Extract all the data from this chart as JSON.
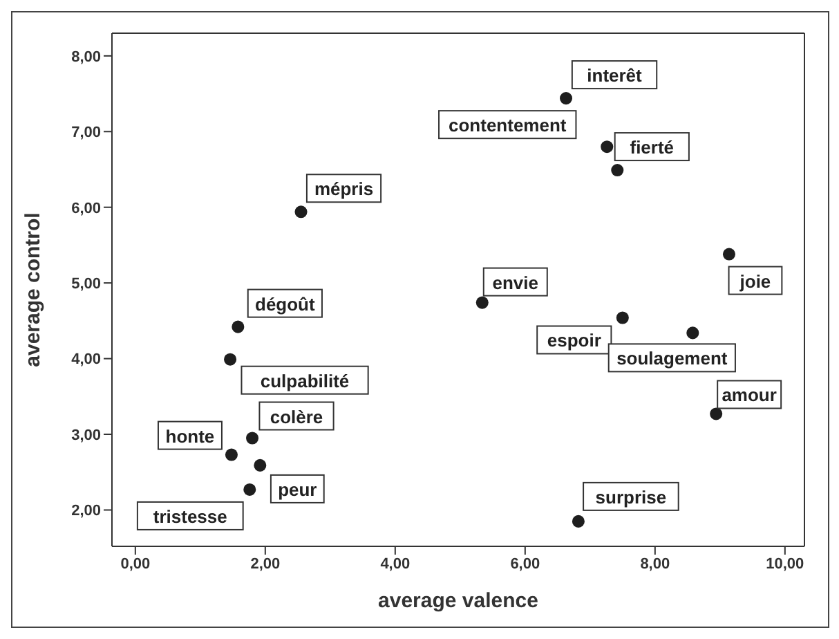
{
  "chart_data": {
    "type": "scatter",
    "xlabel": "average valence",
    "ylabel": "average control",
    "marker": "circle",
    "legend": false,
    "xlim": [
      -0.36,
      10.3
    ],
    "ylim": [
      1.52,
      8.3
    ],
    "xticks": [
      {
        "value": 0,
        "label": "0,00"
      },
      {
        "value": 2,
        "label": "2,00"
      },
      {
        "value": 4,
        "label": "4,00"
      },
      {
        "value": 6,
        "label": "6,00"
      },
      {
        "value": 8,
        "label": "8,00"
      },
      {
        "value": 10,
        "label": "10,00"
      }
    ],
    "yticks": [
      {
        "value": 2,
        "label": "2,00"
      },
      {
        "value": 3,
        "label": "3,00"
      },
      {
        "value": 4,
        "label": "4,00"
      },
      {
        "value": 5,
        "label": "5,00"
      },
      {
        "value": 6,
        "label": "6,00"
      },
      {
        "value": 7,
        "label": "7,00"
      },
      {
        "value": 8,
        "label": "8,00"
      }
    ],
    "series": [
      {
        "color": "#1e1e1e",
        "x": [
          6.63,
          7.26,
          7.42,
          2.55,
          9.14,
          5.34,
          1.58,
          7.5,
          8.58,
          1.46,
          8.94,
          1.8,
          1.48,
          1.92,
          1.76,
          6.82
        ],
        "values": [
          7.44,
          6.8,
          6.49,
          5.94,
          5.38,
          4.74,
          4.42,
          4.54,
          4.34,
          3.99,
          3.27,
          2.95,
          2.73,
          2.59,
          2.27,
          1.85
        ]
      }
    ],
    "annotations": [
      {
        "text": "interêt",
        "x": 6.63,
        "y": 7.44
      },
      {
        "text": "contentement",
        "x": 7.26,
        "y": 6.8
      },
      {
        "text": "fierté",
        "x": 7.42,
        "y": 6.49
      },
      {
        "text": "mépris",
        "x": 2.55,
        "y": 5.94
      },
      {
        "text": "joie",
        "x": 9.14,
        "y": 5.38
      },
      {
        "text": "envie",
        "x": 5.34,
        "y": 4.74
      },
      {
        "text": "dégoût",
        "x": 1.58,
        "y": 4.42
      },
      {
        "text": "espoir",
        "x": 7.5,
        "y": 4.54
      },
      {
        "text": "soulagement",
        "x": 8.58,
        "y": 4.34
      },
      {
        "text": "culpabilité",
        "x": 1.46,
        "y": 3.99
      },
      {
        "text": "amour",
        "x": 8.94,
        "y": 3.27
      },
      {
        "text": "colère",
        "x": 1.8,
        "y": 2.95
      },
      {
        "text": "honte",
        "x": 1.48,
        "y": 2.73
      },
      {
        "text": "peur",
        "x": 1.92,
        "y": 2.59
      },
      {
        "text": "tristesse",
        "x": 1.76,
        "y": 2.27
      },
      {
        "text": "surprise",
        "x": 6.82,
        "y": 1.85
      }
    ]
  }
}
